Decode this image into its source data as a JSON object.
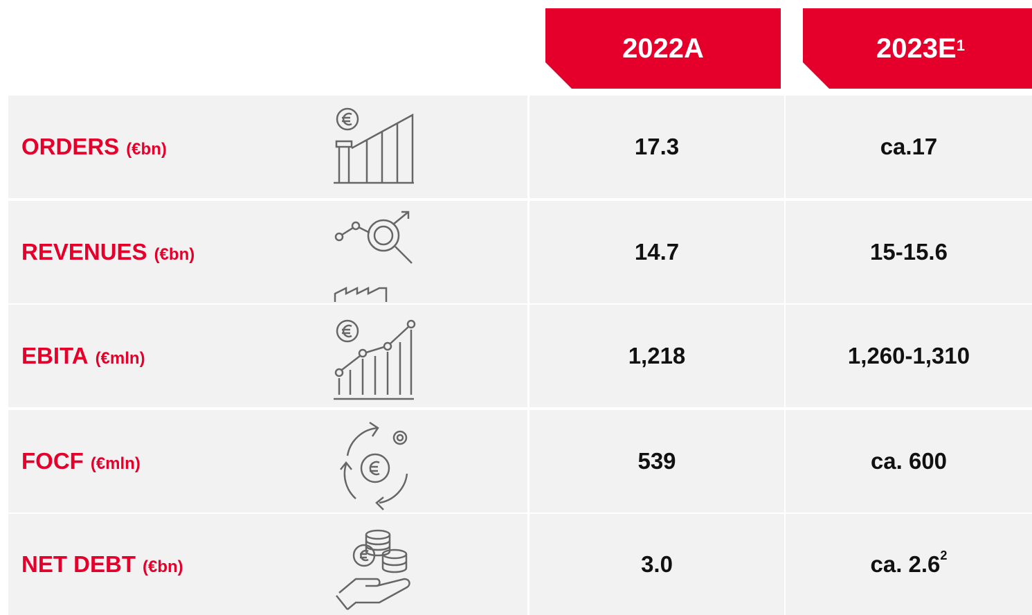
{
  "table": {
    "columns": [
      {
        "text": "2022A"
      },
      {
        "text": "2023E",
        "sup": "1"
      }
    ],
    "rows": [
      {
        "label": "ORDERS",
        "unit": "(€bn)",
        "values": [
          {
            "text": "17.3"
          },
          {
            "text": "ca.17"
          }
        ]
      },
      {
        "label": "REVENUES",
        "unit": "(€bn)",
        "values": [
          {
            "text": "14.7"
          },
          {
            "text": "15-15.6"
          }
        ]
      },
      {
        "label": "EBITA",
        "unit": "(€mln)",
        "values": [
          {
            "text": "1,218"
          },
          {
            "text": "1,260-1,310"
          }
        ]
      },
      {
        "label": "FOCF",
        "unit": "(€mln)",
        "values": [
          {
            "text": "539"
          },
          {
            "text": "ca. 600"
          }
        ]
      },
      {
        "label": "NET DEBT",
        "unit": "(€bn)",
        "values": [
          {
            "text": "3.0"
          },
          {
            "text": "ca. 2.6",
            "sup": "2"
          }
        ]
      }
    ]
  }
}
